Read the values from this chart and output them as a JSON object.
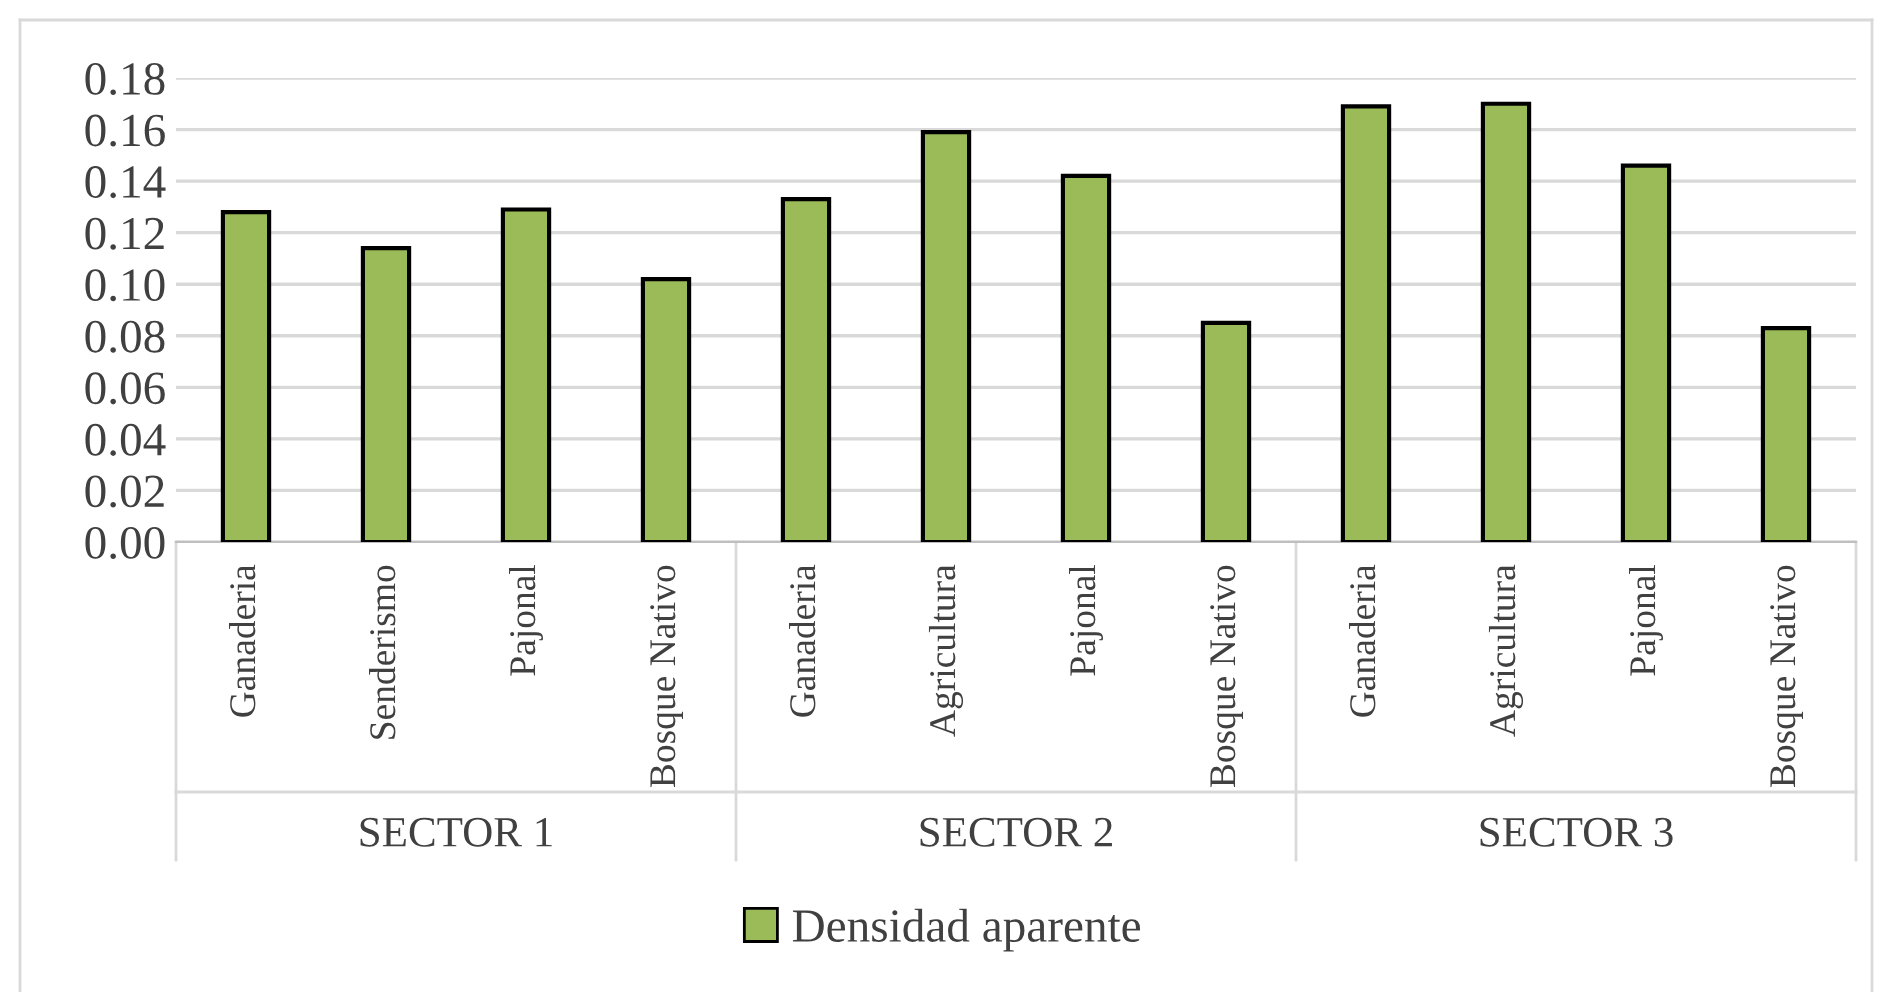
{
  "chart_data": {
    "type": "bar",
    "categories": [
      "Ganaderia",
      "Senderismo",
      "Pajonal",
      "Bosque Nativo",
      "Ganaderia",
      "Agricultura",
      "Pajonal",
      "Bosque Nativo",
      "Ganaderia",
      "Agricultura",
      "Pajonal",
      "Bosque Nativo"
    ],
    "series": [
      {
        "name": "Densidad aparente",
        "color": "#9bbb59",
        "values": [
          0.128,
          0.114,
          0.129,
          0.102,
          0.133,
          0.159,
          0.142,
          0.085,
          0.169,
          0.17,
          0.146,
          0.083
        ]
      }
    ],
    "annotations": [
      "SECTOR 1",
      "SECTOR 2",
      "SECTOR 3"
    ],
    "ylim": [
      0,
      0.18
    ],
    "yticks": [
      {
        "value": 0,
        "label": "0.00"
      },
      {
        "value": 0.02,
        "label": "0.02"
      },
      {
        "value": 0.04,
        "label": "0.04"
      },
      {
        "value": 0.06,
        "label": "0.06"
      },
      {
        "value": 0.08,
        "label": "0.08"
      },
      {
        "value": 0.1,
        "label": "0.10"
      },
      {
        "value": 0.12,
        "label": "0.12"
      },
      {
        "value": 0.14,
        "label": "0.14"
      },
      {
        "value": 0.16,
        "label": "0.16"
      },
      {
        "value": 0.18,
        "label": "0.18"
      }
    ],
    "grid": "y",
    "legend": "bottom"
  }
}
